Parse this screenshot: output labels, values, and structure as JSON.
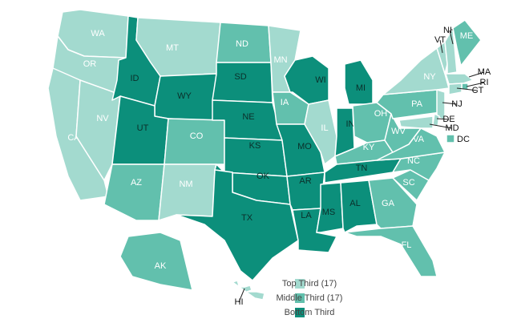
{
  "legend": [
    {
      "label": "Top Third (17)",
      "color": "#a3dacf"
    },
    {
      "label": "Middle Third (17)",
      "color": "#62c0ad"
    },
    {
      "label": "Bottom Third",
      "color": "#0c8f7b"
    }
  ],
  "states": [
    {
      "label": "WA",
      "tier": 0
    },
    {
      "label": "OR",
      "tier": 0
    },
    {
      "label": "CA",
      "tier": 0
    },
    {
      "label": "NV",
      "tier": 0
    },
    {
      "label": "ID",
      "tier": 2
    },
    {
      "label": "MT",
      "tier": 0
    },
    {
      "label": "WY",
      "tier": 2
    },
    {
      "label": "UT",
      "tier": 2
    },
    {
      "label": "CO",
      "tier": 1
    },
    {
      "label": "AZ",
      "tier": 1
    },
    {
      "label": "NM",
      "tier": 0
    },
    {
      "label": "ND",
      "tier": 1
    },
    {
      "label": "SD",
      "tier": 2
    },
    {
      "label": "NE",
      "tier": 2
    },
    {
      "label": "KS",
      "tier": 2
    },
    {
      "label": "OK",
      "tier": 2
    },
    {
      "label": "TX",
      "tier": 2
    },
    {
      "label": "MN",
      "tier": 0
    },
    {
      "label": "IA",
      "tier": 1
    },
    {
      "label": "MO",
      "tier": 2
    },
    {
      "label": "AR",
      "tier": 2
    },
    {
      "label": "LA",
      "tier": 2
    },
    {
      "label": "WI",
      "tier": 2
    },
    {
      "label": "IL",
      "tier": 0
    },
    {
      "label": "MI",
      "tier": 2
    },
    {
      "label": "IN",
      "tier": 2
    },
    {
      "label": "OH",
      "tier": 1
    },
    {
      "label": "KY",
      "tier": 1
    },
    {
      "label": "TN",
      "tier": 2
    },
    {
      "label": "MS",
      "tier": 2
    },
    {
      "label": "AL",
      "tier": 2
    },
    {
      "label": "GA",
      "tier": 1
    },
    {
      "label": "FL",
      "tier": 1
    },
    {
      "label": "SC",
      "tier": 1
    },
    {
      "label": "NC",
      "tier": 1
    },
    {
      "label": "VA",
      "tier": 1
    },
    {
      "label": "WV",
      "tier": 1
    },
    {
      "label": "PA",
      "tier": 1
    },
    {
      "label": "NY",
      "tier": 0
    },
    {
      "label": "VT",
      "tier": 0
    },
    {
      "label": "NH",
      "tier": 0
    },
    {
      "label": "ME",
      "tier": 1
    },
    {
      "label": "MA",
      "tier": 0
    },
    {
      "label": "RI",
      "tier": 1
    },
    {
      "label": "CT",
      "tier": 0
    },
    {
      "label": "NJ",
      "tier": 0
    },
    {
      "label": "DE",
      "tier": 0
    },
    {
      "label": "MD",
      "tier": 0
    },
    {
      "label": "DC",
      "tier": 1
    },
    {
      "label": "AK",
      "tier": 1
    },
    {
      "label": "HI",
      "tier": 0
    }
  ]
}
